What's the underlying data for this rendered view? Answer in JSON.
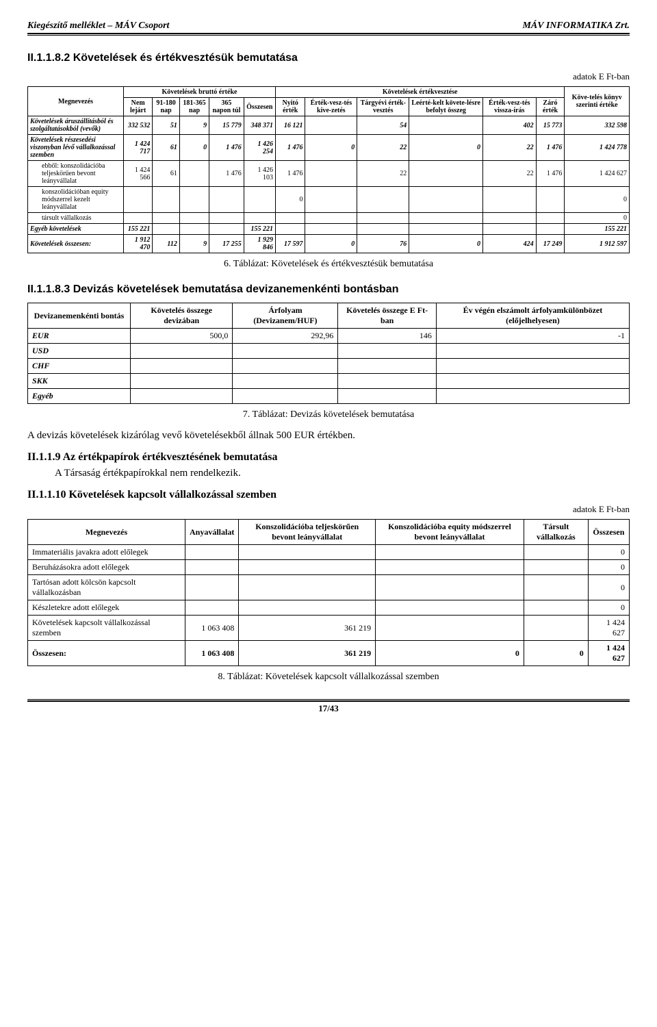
{
  "header": {
    "left": "Kiegészítő melléklet – MÁV Csoport",
    "right": "MÁV INFORMATIKA Zrt."
  },
  "section1": {
    "title": "II.1.1.8.2  Követelések és értékvesztésük bemutatása",
    "unit": "adatok E Ft-ban",
    "groupHead1": "Követelések bruttó értéke",
    "groupHead2": "Követelések értékvesztése",
    "cols": [
      "Megnevezés",
      "Nem lejárt",
      "91-180 nap",
      "181-365 nap",
      "365 napon túl",
      "Összesen",
      "Nyitó érték",
      "Érték-vesz-tés kive-zetés",
      "Tárgyévi érték-vesztés",
      "Leérté-kelt követe-lésre befolyt összeg",
      "Érték-vesz-tés vissza-írás",
      "Záró érték",
      "Köve-telés könyv szerinti értéke"
    ],
    "rows": [
      {
        "label": "Követelések áruszállításból és szolgáltatásokból (vevők)",
        "vals": [
          "332 532",
          "51",
          "9",
          "15 779",
          "348 371",
          "16 121",
          "",
          "54",
          "",
          "402",
          "15 773",
          "332 598"
        ],
        "italic": true,
        "bold": true
      },
      {
        "label": "Követelések részesedési viszonyban lévő vállalkozással szemben",
        "vals": [
          "1 424 717",
          "61",
          "0",
          "1 476",
          "1 426 254",
          "1 476",
          "0",
          "22",
          "0",
          "22",
          "1 476",
          "1 424 778"
        ],
        "italic": true,
        "bold": true
      },
      {
        "label": "ebből: konszolidációba teljeskörűen bevont leányvállalat",
        "vals": [
          "1 424 566",
          "61",
          "",
          "1 476",
          "1 426 103",
          "1 476",
          "",
          "22",
          "",
          "22",
          "1 476",
          "1 424 627"
        ],
        "indent": true
      },
      {
        "label": "konszolidációban equity módszerrel kezelt leányvállalat",
        "vals": [
          "",
          "",
          "",
          "",
          "",
          "0",
          "",
          "",
          "",
          "",
          "",
          "0"
        ],
        "indent": true
      },
      {
        "label": "társult vállalkozás",
        "vals": [
          "",
          "",
          "",
          "",
          "",
          "",
          "",
          "",
          "",
          "",
          "",
          "0"
        ],
        "indent": true
      },
      {
        "label": "Egyéb követelések",
        "vals": [
          "155 221",
          "",
          "",
          "",
          "155 221",
          "",
          "",
          "",
          "",
          "",
          "",
          "155 221"
        ],
        "italic": true,
        "bold": true
      },
      {
        "label": "Követelések összesen:",
        "vals": [
          "1 912 470",
          "112",
          "9",
          "17 255",
          "1 929 846",
          "17 597",
          "0",
          "76",
          "0",
          "424",
          "17 249",
          "1 912 597"
        ],
        "italic": true,
        "bold": true
      }
    ],
    "caption": "6. Táblázat: Követelések és értékvesztésük bemutatása"
  },
  "section2": {
    "title": "II.1.1.8.3  Devizás követelések bemutatása devizanemenkénti bontásban",
    "cols": [
      "Devizanemenkénti bontás",
      "Követelés összege devizában",
      "Árfolyam (Devizanem/HUF)",
      "Követelés összege E Ft-ban",
      "Év végén elszámolt árfolyamkülönbözet (előjelhelyesen)"
    ],
    "rows": [
      {
        "label": "EUR",
        "vals": [
          "500,0",
          "292,96",
          "146",
          "-1"
        ]
      },
      {
        "label": "USD",
        "vals": [
          "",
          "",
          "",
          ""
        ]
      },
      {
        "label": "CHF",
        "vals": [
          "",
          "",
          "",
          ""
        ]
      },
      {
        "label": "SKK",
        "vals": [
          "",
          "",
          "",
          ""
        ]
      },
      {
        "label": "Egyéb",
        "vals": [
          "",
          "",
          "",
          ""
        ]
      }
    ],
    "caption": "7. Táblázat: Devizás követelések bemutatása"
  },
  "para1": "A devizás követelések kizárólag vevő követelésekből állnak 500 EUR értékben.",
  "sub1": "II.1.1.9 Az értékpapírok értékvesztésének bemutatása",
  "para2": "A Társaság értékpapírokkal nem rendelkezik.",
  "sub2": "II.1.1.10 Követelések kapcsolt vállalkozással szemben",
  "unit2": "adatok E Ft-ban",
  "section3": {
    "cols": [
      "Megnevezés",
      "Anyavállalat",
      "Konszolidációba teljeskörűen bevont leányvállalat",
      "Konszolidációba equity módszerrel bevont leányvállalat",
      "Társult vállalkozás",
      "Összesen"
    ],
    "rows": [
      {
        "label": "Immateriális javakra adott előlegek",
        "vals": [
          "",
          "",
          "",
          "",
          "0"
        ]
      },
      {
        "label": "Beruházásokra adott előlegek",
        "vals": [
          "",
          "",
          "",
          "",
          "0"
        ]
      },
      {
        "label": "Tartósan adott kölcsön kapcsolt vállalkozásban",
        "vals": [
          "",
          "",
          "",
          "",
          "0"
        ]
      },
      {
        "label": "Készletekre adott előlegek",
        "vals": [
          "",
          "",
          "",
          "",
          "0"
        ]
      },
      {
        "label": "Követelések kapcsolt vállalkozással szemben",
        "vals": [
          "1 063 408",
          "361 219",
          "",
          "",
          "1 424 627"
        ]
      },
      {
        "label": "Összesen:",
        "vals": [
          "1 063 408",
          "361 219",
          "0",
          "0",
          "1 424 627"
        ],
        "bold": true
      }
    ],
    "caption": "8. Táblázat: Követelések kapcsolt vállalkozással szemben"
  },
  "pageNum": "17/43"
}
